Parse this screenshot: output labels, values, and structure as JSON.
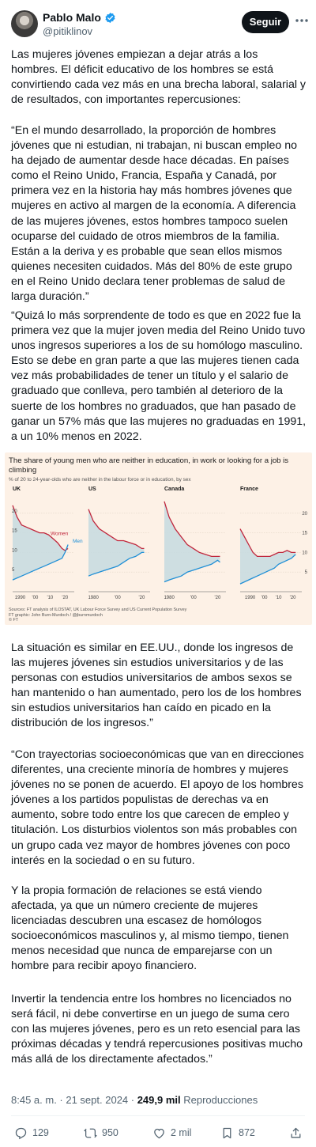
{
  "author": {
    "display_name": "Pablo Malo",
    "handle": "@pitiklinov",
    "follow_label": "Seguir",
    "verified_icon": "verified-badge-icon",
    "accent": "#1d9bf0"
  },
  "tweet": {
    "paragraphs": [
      "Las mujeres jóvenes empiezan a dejar atrás a los hombres. El déficit educativo de los hombres se está convirtiendo cada vez más en una brecha laboral, salarial y de resultados, con importantes repercusiones:",
      "“En el mundo desarrollado, la proporción de hombres jóvenes que ni estudian, ni trabajan, ni buscan empleo no ha dejado de aumentar desde hace décadas. En países como el Reino Unido, Francia, España y Canadá, por primera vez en la historia hay más hombres jóvenes que mujeres en activo al margen de la economía. A diferencia de las mujeres jóvenes, estos hombres tampoco suelen ocuparse del cuidado de otros miembros de la familia. Están a la deriva y es probable que sean ellos mismos quienes necesiten cuidados. Más del 80% de este grupo en el Reino Unido declara tener problemas de salud de larga duración.”",
      "“Quizá lo más sorprendente de todo es que en 2022 fue la primera vez que la mujer joven media del Reino Unido tuvo unos ingresos superiores a los de su homólogo masculino. Esto se debe en gran parte a que las mujeres tienen cada vez más probabilidades de tener un título y el salario de graduado que conlleva, pero también al deterioro de la suerte de los hombres no graduados, que han pasado de ganar un 57% más que las mujeres no graduadas en 1991, a un 10% menos en 2022.",
      "La situación es similar en EE.UU., donde los ingresos de las mujeres jóvenes sin estudios universitarios y de las personas con estudios universitarios de ambos sexos se han mantenido o han aumentado, pero los de los hombres sin estudios universitarios han caído en picado en la distribución de los ingresos.”",
      "“Con trayectorias socioeconómicas que van en direcciones diferentes, una creciente minoría de hombres y mujeres jóvenes no se ponen de acuerdo. El apoyo de los hombres jóvenes a los partidos populistas de derechas va en aumento, sobre todo entre los que carecen de empleo y titulación. Los disturbios violentos son más probables con un grupo cada vez mayor de hombres jóvenes con poco interés en la sociedad o en su futuro.",
      "Y la propia formación de relaciones se está viendo afectada, ya que un número creciente de mujeres licenciadas descubren una escasez de homólogos socioeconómicos masculinos y, al mismo tiempo, tienen menos necesidad que nunca de emparejarse con un hombre para recibir apoyo financiero.",
      "Invertir la tendencia entre los hombres no licenciados no será fácil, ni debe convertirse en un juego de suma cero con las mujeres jóvenes, pero es un reto esencial para las próximas décadas y tendrá repercusiones positivas mucho más allá de los directamente afectados.”"
    ],
    "timestamp": "8:45 a. m. · 21 sept. 2024 · ",
    "views_count": "249,9 mil",
    "views_label": " Reproducciones"
  },
  "actions": {
    "replies": "129",
    "reposts": "950",
    "likes": "2 mil",
    "bookmarks": "872"
  },
  "chart_image": {
    "title": "The share of young men who are neither in education, in work or looking for a job is climbing",
    "subtitle": "% of 20 to 24-year-olds who are neither in the labour force or in education, by sex",
    "source": "Sources: FT analysis of ILOSTAT, UK Labour Force Survey and US Current Population Survey",
    "credit": "FT graphic: John Burn-Murdoch / @jburnmurdoch",
    "copyright": "© FT",
    "women_color": "#c0263c",
    "men_color": "#1f8fd6",
    "fill_color": "#c9dbe0",
    "y_ticks": [
      "20",
      "15",
      "10",
      "5"
    ]
  },
  "chart_data": {
    "type": "line",
    "title": "The share of young men who are neither in education, in work or looking for a job is climbing",
    "subtitle": "% of 20 to 24-year-olds who are neither in the labour force or in education, by sex",
    "ylim": [
      0,
      25
    ],
    "panels": [
      {
        "country": "UK",
        "xlim": [
          1985,
          2023
        ],
        "x_ticks": [
          "1990",
          "'00",
          "'10",
          "'20"
        ],
        "x_tick_values": [
          1990,
          2000,
          2010,
          2020
        ],
        "series": [
          {
            "name": "Women",
            "x": [
              1985,
              1988,
              1991,
              1994,
              1997,
              2000,
              2003,
              2006,
              2009,
              2012,
              2015,
              2018,
              2020,
              2022
            ],
            "values": [
              22,
              19,
              17,
              16.5,
              16,
              15.5,
              15,
              15,
              14.5,
              13.5,
              12.5,
              11,
              10.5,
              11
            ]
          },
          {
            "name": "Men",
            "x": [
              1985,
              1988,
              1991,
              1994,
              1997,
              2000,
              2003,
              2006,
              2009,
              2012,
              2015,
              2018,
              2020,
              2022
            ],
            "values": [
              3,
              3.5,
              4,
              4.5,
              5,
              5.5,
              6,
              6.5,
              7,
              7.5,
              8,
              8.5,
              10,
              12
            ]
          }
        ]
      },
      {
        "country": "US",
        "xlim": [
          1976,
          2023
        ],
        "x_ticks": [
          "1980",
          "'00",
          "'20"
        ],
        "x_tick_values": [
          1980,
          2000,
          2020
        ],
        "series": [
          {
            "name": "Women",
            "x": [
              1976,
              1980,
              1985,
              1990,
              1995,
              2000,
              2005,
              2010,
              2015,
              2020,
              2022
            ],
            "values": [
              21,
              18,
              16,
              15,
              14,
              13,
              13,
              12.5,
              12,
              11,
              11
            ]
          },
          {
            "name": "Men",
            "x": [
              1976,
              1980,
              1985,
              1990,
              1995,
              2000,
              2005,
              2010,
              2015,
              2020,
              2022
            ],
            "values": [
              4,
              4.5,
              5,
              5.5,
              6,
              6.5,
              7.5,
              8.5,
              9,
              10,
              10
            ]
          }
        ]
      },
      {
        "country": "Canada",
        "xlim": [
          1976,
          2023
        ],
        "x_ticks": [
          "1980",
          "'00",
          "'20"
        ],
        "x_tick_values": [
          1980,
          2000,
          2020
        ],
        "series": [
          {
            "name": "Women",
            "x": [
              1976,
              1980,
              1985,
              1990,
              1995,
              2000,
              2005,
              2010,
              2015,
              2020,
              2022
            ],
            "values": [
              23,
              19,
              16,
              14,
              12,
              11,
              10,
              9.5,
              9,
              9,
              9
            ]
          },
          {
            "name": "Men",
            "x": [
              1976,
              1980,
              1985,
              1990,
              1995,
              2000,
              2005,
              2010,
              2015,
              2020,
              2022
            ],
            "values": [
              2.5,
              3,
              3.5,
              4,
              5,
              5.5,
              6,
              6.5,
              7,
              8,
              7.5
            ]
          }
        ]
      },
      {
        "country": "France",
        "xlim": [
          1983,
          2023
        ],
        "x_ticks": [
          "1990",
          "'00",
          "'10",
          "'20"
        ],
        "x_tick_values": [
          1990,
          2000,
          2010,
          2020
        ],
        "series": [
          {
            "name": "Women",
            "x": [
              1983,
              1986,
              1989,
              1992,
              1995,
              1998,
              2001,
              2004,
              2007,
              2010,
              2013,
              2016,
              2019,
              2022
            ],
            "values": [
              16,
              14,
              12,
              10,
              9,
              9,
              9,
              9,
              9.5,
              10,
              10,
              10.5,
              10,
              10
            ]
          },
          {
            "name": "Men",
            "x": [
              1983,
              1986,
              1989,
              1992,
              1995,
              1998,
              2001,
              2004,
              2007,
              2010,
              2013,
              2016,
              2019,
              2022
            ],
            "values": [
              2,
              2.5,
              3,
              3.5,
              4,
              4.5,
              5,
              5.5,
              6,
              7,
              7.5,
              8,
              8.5,
              9.5
            ]
          }
        ]
      }
    ]
  }
}
